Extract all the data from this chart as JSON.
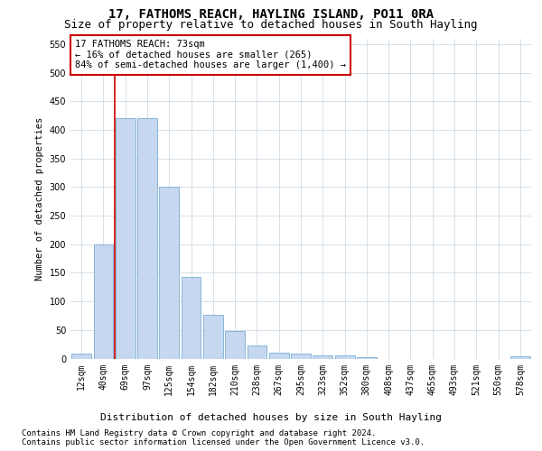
{
  "title": "17, FATHOMS REACH, HAYLING ISLAND, PO11 0RA",
  "subtitle": "Size of property relative to detached houses in South Hayling",
  "xlabel": "Distribution of detached houses by size in South Hayling",
  "ylabel": "Number of detached properties",
  "categories": [
    "12sqm",
    "40sqm",
    "69sqm",
    "97sqm",
    "125sqm",
    "154sqm",
    "182sqm",
    "210sqm",
    "238sqm",
    "267sqm",
    "295sqm",
    "323sqm",
    "352sqm",
    "380sqm",
    "408sqm",
    "437sqm",
    "465sqm",
    "493sqm",
    "521sqm",
    "550sqm",
    "578sqm"
  ],
  "bar_heights": [
    8,
    200,
    420,
    420,
    300,
    143,
    77,
    48,
    23,
    11,
    8,
    6,
    5,
    2,
    0,
    0,
    0,
    0,
    0,
    0,
    4
  ],
  "bar_color": "#c5d8ef",
  "bar_edge_color": "#7aadd4",
  "ylim": [
    0,
    560
  ],
  "yticks": [
    0,
    50,
    100,
    150,
    200,
    250,
    300,
    350,
    400,
    450,
    500,
    550
  ],
  "vline_x_index": 1.5,
  "vline_color": "#cc0000",
  "annotation_line1": "17 FATHOMS REACH: 73sqm",
  "annotation_line2": "← 16% of detached houses are smaller (265)",
  "annotation_line3": "84% of semi-detached houses are larger (1,400) →",
  "annotation_box_color": "#ffffff",
  "annotation_box_edge_color": "#cc0000",
  "footer_line1": "Contains HM Land Registry data © Crown copyright and database right 2024.",
  "footer_line2": "Contains public sector information licensed under the Open Government Licence v3.0.",
  "bg_color": "#ffffff",
  "grid_color": "#c8d4e0",
  "title_fontsize": 10,
  "subtitle_fontsize": 9,
  "xlabel_fontsize": 8,
  "ylabel_fontsize": 7.5,
  "tick_fontsize": 7,
  "annotation_fontsize": 7.5,
  "footer_fontsize": 6.5
}
